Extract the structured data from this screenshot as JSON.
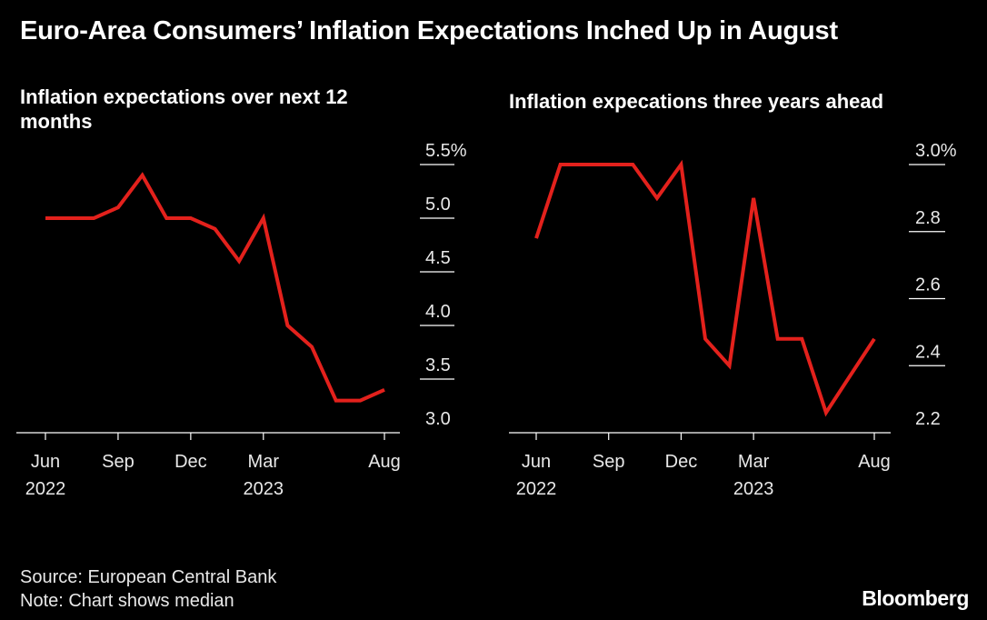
{
  "title": "Euro-Area Consumers’ Inflation Expectations Inched Up in August",
  "source": "Source: European Central Bank",
  "note": "Note: Chart shows median",
  "brand": "Bloomberg",
  "colors": {
    "line": "#e3211c",
    "background": "#000000",
    "text": "#ffffff",
    "axis": "#ffffff"
  },
  "chart_data": [
    {
      "type": "line",
      "title": "Inflation expectations over next 12 months",
      "x": [
        "2022-06",
        "2022-07",
        "2022-08",
        "2022-09",
        "2022-10",
        "2022-11",
        "2022-12",
        "2023-01",
        "2023-02",
        "2023-03",
        "2023-04",
        "2023-05",
        "2023-06",
        "2023-07",
        "2023-08"
      ],
      "series": [
        {
          "values": [
            5.0,
            5.0,
            5.0,
            5.1,
            5.4,
            5.0,
            5.0,
            4.9,
            4.6,
            5.0,
            4.0,
            3.8,
            3.3,
            3.3,
            3.4
          ]
        }
      ],
      "ylim": [
        3.0,
        5.5
      ],
      "y_ticks": [
        3.0,
        3.5,
        4.0,
        4.5,
        5.0,
        5.5
      ],
      "y_tick_labels": [
        "3.0",
        "3.5",
        "4.0",
        "4.5",
        "5.0",
        "5.5%"
      ],
      "x_ticks": [
        {
          "x": "2022-06",
          "label": "Jun",
          "year": "2022"
        },
        {
          "x": "2022-09",
          "label": "Sep",
          "year": ""
        },
        {
          "x": "2022-12",
          "label": "Dec",
          "year": ""
        },
        {
          "x": "2023-03",
          "label": "Mar",
          "year": "2023"
        },
        {
          "x": "2023-08",
          "label": "Aug",
          "year": ""
        }
      ],
      "y_axis_side": "right",
      "grid": false
    },
    {
      "type": "line",
      "title": "Inflation expecations three years ahead",
      "x": [
        "2022-06",
        "2022-07",
        "2022-08",
        "2022-09",
        "2022-10",
        "2022-11",
        "2022-12",
        "2023-01",
        "2023-02",
        "2023-03",
        "2023-04",
        "2023-05",
        "2023-06",
        "2023-07",
        "2023-08"
      ],
      "series": [
        {
          "values": [
            2.78,
            3.0,
            3.0,
            3.0,
            3.0,
            2.9,
            3.0,
            2.48,
            2.4,
            2.9,
            2.48,
            2.48,
            2.26,
            2.37,
            2.48
          ]
        }
      ],
      "ylim": [
        2.2,
        3.0
      ],
      "y_ticks": [
        2.2,
        2.4,
        2.6,
        2.8,
        3.0
      ],
      "y_tick_labels": [
        "2.2",
        "2.4",
        "2.6",
        "2.8",
        "3.0%"
      ],
      "x_ticks": [
        {
          "x": "2022-06",
          "label": "Jun",
          "year": "2022"
        },
        {
          "x": "2022-09",
          "label": "Sep",
          "year": ""
        },
        {
          "x": "2022-12",
          "label": "Dec",
          "year": ""
        },
        {
          "x": "2023-03",
          "label": "Mar",
          "year": "2023"
        },
        {
          "x": "2023-08",
          "label": "Aug",
          "year": ""
        }
      ],
      "y_axis_side": "right",
      "grid": false
    }
  ]
}
